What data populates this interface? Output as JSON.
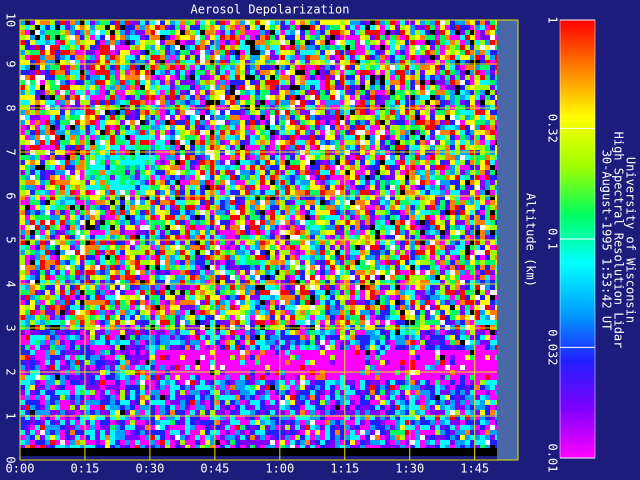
{
  "chart_data": {
    "type": "heatmap",
    "title": "Aerosol Depolarization",
    "y_label": "Altitude (km)",
    "xlim": [
      0,
      115
    ],
    "xticks": [
      {
        "value": 0,
        "label": "0:00"
      },
      {
        "value": 15,
        "label": "0:15"
      },
      {
        "value": 30,
        "label": "0:30"
      },
      {
        "value": 45,
        "label": "0:45"
      },
      {
        "value": 60,
        "label": "1:00"
      },
      {
        "value": 75,
        "label": "1:15"
      },
      {
        "value": 90,
        "label": "1:30"
      },
      {
        "value": 105,
        "label": "1:45"
      }
    ],
    "ylim": [
      0,
      10
    ],
    "yticks": [
      0,
      1,
      2,
      3,
      4,
      5,
      6,
      7,
      8,
      9,
      10
    ],
    "grid": true,
    "colorbar": {
      "scale": "log",
      "lim": [
        0.01,
        1
      ],
      "ticks": [
        1,
        0.32,
        0.1,
        0.032,
        0.01
      ],
      "colors": [
        "#ff00ff",
        "#8000ff",
        "#2020ff",
        "#00a0ff",
        "#00ffff",
        "#00ff60",
        "#a0ff00",
        "#ffff00",
        "#ff8000",
        "#ff0000"
      ]
    },
    "annotations": [
      "University of Wisconsin",
      "High Spectral Resolution Lidar",
      "30-August-1995  1:53:42 UT"
    ]
  }
}
